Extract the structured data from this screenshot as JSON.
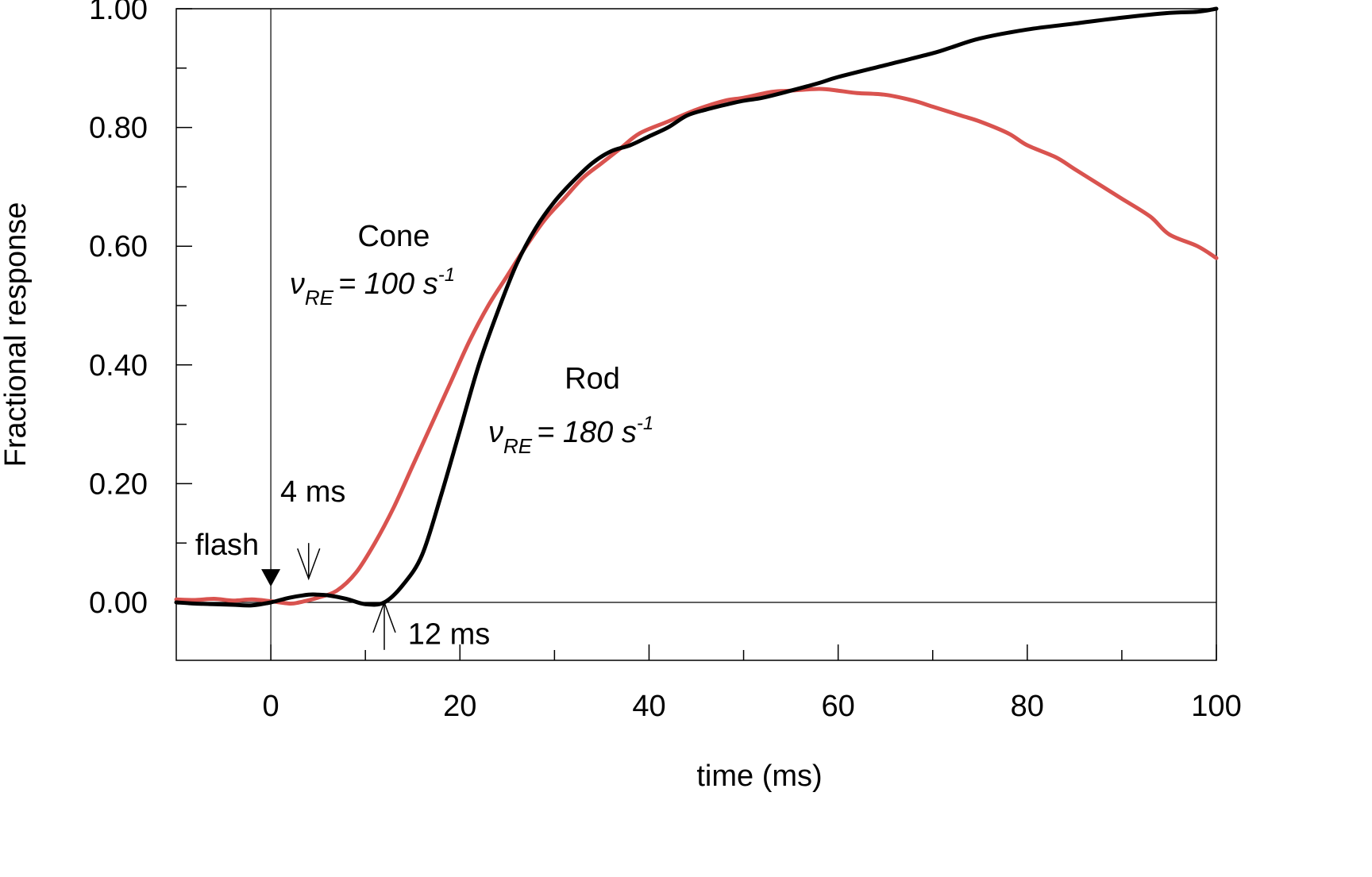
{
  "chart_data": {
    "type": "line",
    "title": "",
    "xlabel": "time (ms)",
    "ylabel": "Fractional response",
    "xlim": [
      -10,
      100
    ],
    "ylim": [
      -0.1,
      1.0
    ],
    "x_ticks": [
      0,
      20,
      40,
      60,
      80,
      100
    ],
    "x_tick_labels": [
      "0",
      "20",
      "40",
      "60",
      "80",
      "100"
    ],
    "x_minor_ticks": [
      10,
      30,
      50,
      70,
      90
    ],
    "y_ticks": [
      0.0,
      0.2,
      0.4,
      0.6,
      0.8,
      1.0
    ],
    "y_tick_labels": [
      "0.00",
      "0.20",
      "0.40",
      "0.60",
      "0.80",
      "1.00"
    ],
    "y_minor_ticks": [
      0.1,
      0.3,
      0.5,
      0.7,
      0.9
    ],
    "grid": false,
    "legend": "none",
    "reference_lines": [
      {
        "type": "vertical",
        "x": 0
      },
      {
        "type": "horizontal",
        "y": 0
      }
    ],
    "series": [
      {
        "name": "Cone",
        "color": "#d9534f",
        "x": [
          -10,
          -8,
          -6,
          -4,
          -2,
          0,
          2,
          3,
          5,
          7,
          9,
          11,
          13,
          15,
          17,
          19,
          21,
          23,
          25,
          27,
          29,
          31,
          33,
          35,
          37,
          39,
          42,
          45,
          48,
          50,
          53,
          55,
          58,
          60,
          62,
          65,
          68,
          70,
          73,
          75,
          78,
          80,
          83,
          85,
          88,
          90,
          93,
          95,
          98,
          100
        ],
        "y": [
          0.005,
          0.004,
          0.006,
          0.003,
          0.005,
          0.002,
          -0.002,
          0.0,
          0.008,
          0.02,
          0.05,
          0.1,
          0.16,
          0.23,
          0.3,
          0.37,
          0.44,
          0.5,
          0.55,
          0.6,
          0.645,
          0.68,
          0.715,
          0.74,
          0.765,
          0.79,
          0.81,
          0.83,
          0.845,
          0.85,
          0.86,
          0.862,
          0.865,
          0.862,
          0.858,
          0.855,
          0.845,
          0.835,
          0.82,
          0.81,
          0.79,
          0.77,
          0.75,
          0.73,
          0.7,
          0.68,
          0.65,
          0.62,
          0.6,
          0.58
        ]
      },
      {
        "name": "Rod",
        "color": "#000000",
        "x": [
          -10,
          -8,
          -6,
          -4,
          -2,
          0,
          2,
          4,
          5,
          6,
          8,
          10,
          12,
          14,
          16,
          18,
          20,
          22,
          24,
          26,
          28,
          30,
          32,
          34,
          36,
          38,
          40,
          42,
          44,
          46,
          48,
          50,
          52,
          55,
          58,
          60,
          65,
          70,
          72,
          75,
          80,
          85,
          90,
          95,
          98,
          100
        ],
        "y": [
          0.0,
          -0.002,
          -0.003,
          -0.004,
          -0.005,
          0.0,
          0.008,
          0.013,
          0.013,
          0.012,
          0.006,
          -0.003,
          0.0,
          0.03,
          0.08,
          0.18,
          0.29,
          0.4,
          0.49,
          0.57,
          0.63,
          0.675,
          0.71,
          0.74,
          0.76,
          0.77,
          0.785,
          0.8,
          0.82,
          0.83,
          0.838,
          0.845,
          0.85,
          0.862,
          0.875,
          0.885,
          0.905,
          0.925,
          0.935,
          0.95,
          0.965,
          0.975,
          0.985,
          0.993,
          0.995,
          1.0
        ]
      }
    ],
    "annotations": [
      {
        "id": "cone-label",
        "text": "Cone",
        "x": 13,
        "y": 0.6
      },
      {
        "id": "cone-rate",
        "symbol": "ν",
        "subscript": "RE",
        "text": "= 100 s",
        "superscript": "-1",
        "x": 2,
        "y": 0.52
      },
      {
        "id": "rod-label",
        "text": "Rod",
        "x": 34,
        "y": 0.36
      },
      {
        "id": "rod-rate",
        "symbol": "ν",
        "subscript": "RE",
        "text": "= 180 s",
        "superscript": "-1",
        "x": 23,
        "y": 0.27
      },
      {
        "id": "flash-label",
        "text": "flash",
        "x": -8,
        "y": 0.08
      },
      {
        "id": "flash-marker",
        "marker": "triangle-down",
        "x": 0,
        "y": 0.04
      },
      {
        "id": "cone-delay-label",
        "text": "4 ms",
        "x": 1,
        "y": 0.17
      },
      {
        "id": "cone-delay-arrow",
        "arrow": "down",
        "x": 4,
        "y_from": 0.1,
        "y_to": 0.04
      },
      {
        "id": "rod-delay-label",
        "text": "12 ms",
        "x": 14.5,
        "y": -0.07
      },
      {
        "id": "rod-delay-arrow",
        "arrow": "up",
        "x": 12,
        "y_from": -0.08,
        "y_to": 0.0
      }
    ]
  }
}
